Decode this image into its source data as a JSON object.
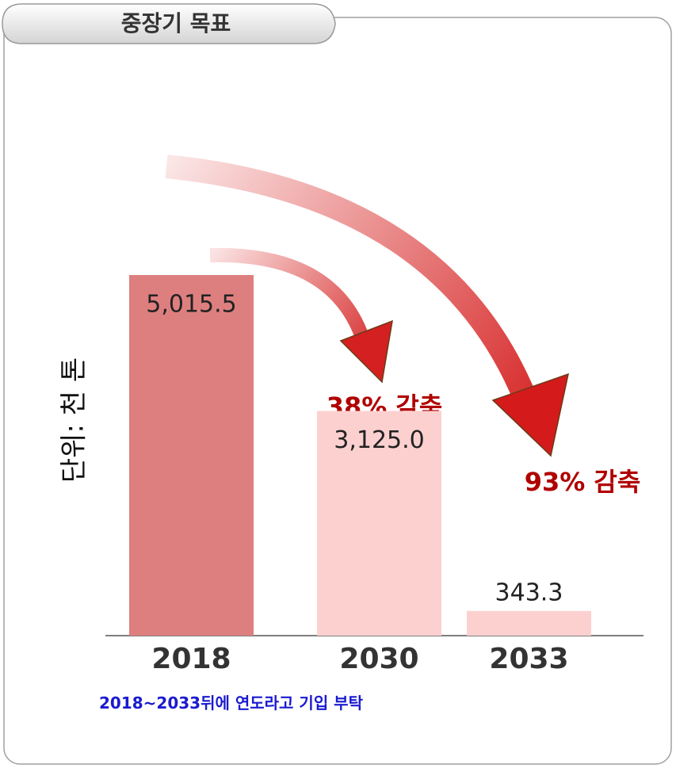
{
  "chart_data": {
    "type": "bar",
    "title": "중장기 목표",
    "ylabel": "단위: 천 톤",
    "categories": [
      "2018",
      "2030",
      "2033"
    ],
    "values": [
      5015.5,
      3125.0,
      343.3
    ],
    "value_labels": [
      "5,015.5",
      "3,125.0",
      "343.3"
    ],
    "colors": [
      "#de7f7f",
      "#fdd0d0",
      "#fdd0d0"
    ],
    "annotations": [
      "38% 감축",
      "93% 감축"
    ],
    "note": {
      "highlight": "2018~2033",
      "text": "뒤에 연도라고 기입 부탁"
    }
  }
}
